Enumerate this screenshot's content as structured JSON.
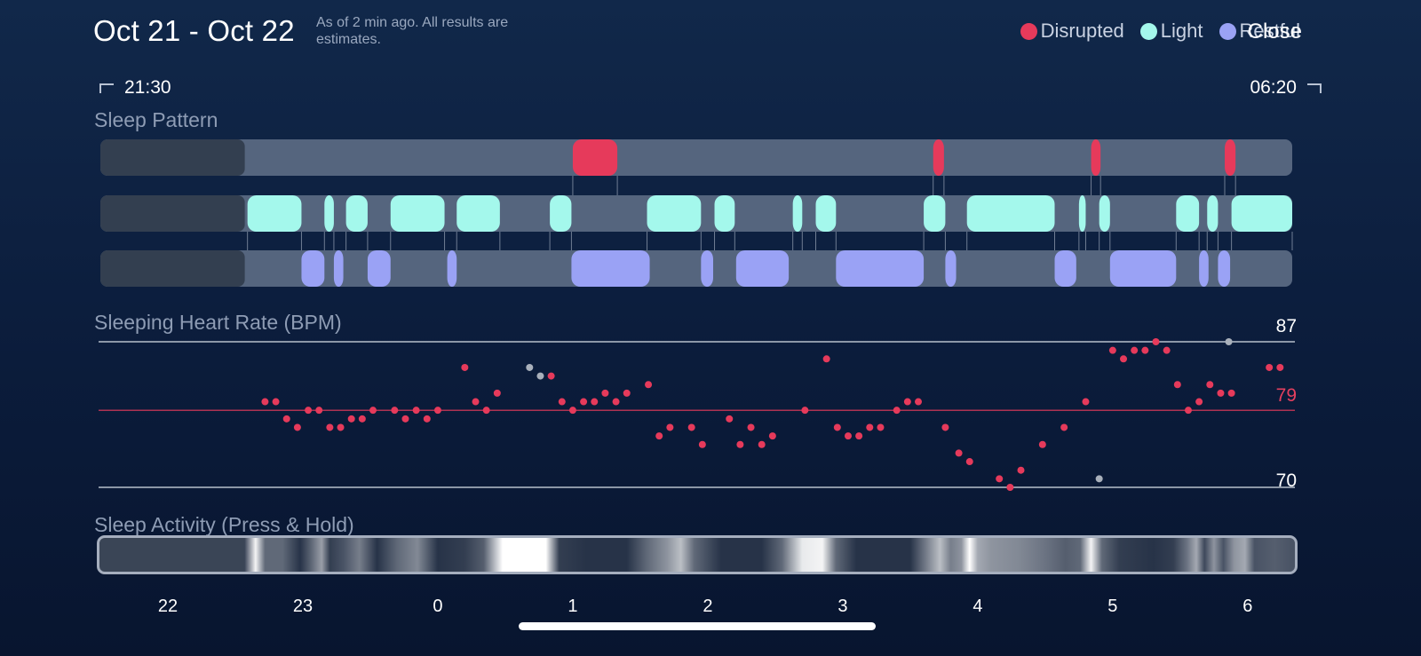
{
  "header": {
    "title": "Oct 21 - Oct 22",
    "subtitle": "As of 2 min ago. All results are estimates.",
    "close_label": "Close"
  },
  "legend": [
    {
      "label": "Disrupted",
      "color": "#e63a5b"
    },
    {
      "label": "Light",
      "color": "#a4f8ec"
    },
    {
      "label": "Restful",
      "color": "#9aa2f5"
    }
  ],
  "time_range": {
    "start": "21:30",
    "end": "06:20"
  },
  "sections": {
    "pattern": "Sleep Pattern",
    "heart_rate": "Sleeping Heart Rate (BPM)",
    "activity": "Sleep Activity (Press & Hold)"
  },
  "axis": {
    "tick_labels": [
      "22",
      "23",
      "0",
      "1",
      "2",
      "3",
      "4",
      "5",
      "6"
    ],
    "tick_hours": [
      22,
      23,
      24,
      25,
      26,
      27,
      28,
      29,
      30
    ],
    "start_hour": 21.5,
    "end_hour": 30.33
  },
  "colors": {
    "disrupted": "#e63a5b",
    "light": "#a4f8ec",
    "restful": "#9aa2f5",
    "track": "#55657e",
    "track_empty": "#333f50",
    "hr_point": "#e63a5b",
    "hr_outlier": "#a9b0bb",
    "avg_line": "#e63a5b",
    "ref_line": "#b8c0cc"
  },
  "chart_data": [
    {
      "type": "timeline",
      "title": "Sleep Pattern",
      "x_unit": "hour (21.5 = 21:30, 24 = midnight, 30.33 = 06:20)",
      "no_data_before": 22.57,
      "series": [
        {
          "name": "Disrupted",
          "segments": [
            [
              25.0,
              25.33
            ],
            [
              27.67,
              27.75
            ],
            [
              28.84,
              28.91
            ],
            [
              29.83,
              29.91
            ]
          ]
        },
        {
          "name": "Light",
          "segments": [
            [
              22.59,
              22.99
            ],
            [
              23.16,
              23.23
            ],
            [
              23.32,
              23.48
            ],
            [
              23.65,
              24.05
            ],
            [
              24.14,
              24.46
            ],
            [
              24.83,
              24.99
            ],
            [
              25.55,
              25.95
            ],
            [
              26.05,
              26.2
            ],
            [
              26.63,
              26.7
            ],
            [
              26.8,
              26.95
            ],
            [
              27.6,
              27.76
            ],
            [
              27.92,
              28.57
            ],
            [
              28.75,
              28.8
            ],
            [
              28.9,
              28.98
            ],
            [
              29.47,
              29.64
            ],
            [
              29.7,
              29.78
            ],
            [
              29.88,
              30.33
            ]
          ]
        },
        {
          "name": "Restful",
          "segments": [
            [
              22.99,
              23.16
            ],
            [
              23.23,
              23.3
            ],
            [
              23.48,
              23.65
            ],
            [
              24.07,
              24.14
            ],
            [
              24.99,
              25.57
            ],
            [
              25.95,
              26.04
            ],
            [
              26.21,
              26.6
            ],
            [
              26.95,
              27.6
            ],
            [
              27.76,
              27.84
            ],
            [
              28.57,
              28.73
            ],
            [
              28.98,
              29.47
            ],
            [
              29.64,
              29.71
            ],
            [
              29.78,
              29.87
            ]
          ]
        }
      ]
    },
    {
      "type": "scatter",
      "title": "Sleeping Heart Rate (BPM)",
      "ylim": [
        70,
        87
      ],
      "average": 79,
      "ref_labels": [
        "87",
        "79",
        "70"
      ],
      "points": [
        [
          22.72,
          80
        ],
        [
          22.8,
          80
        ],
        [
          22.88,
          78
        ],
        [
          22.96,
          77
        ],
        [
          23.04,
          79
        ],
        [
          23.12,
          79
        ],
        [
          23.2,
          77
        ],
        [
          23.28,
          77
        ],
        [
          23.36,
          78
        ],
        [
          23.44,
          78
        ],
        [
          23.52,
          79
        ],
        [
          23.68,
          79
        ],
        [
          23.76,
          78
        ],
        [
          23.84,
          79
        ],
        [
          23.92,
          78
        ],
        [
          24.0,
          79
        ],
        [
          24.2,
          84
        ],
        [
          24.28,
          80
        ],
        [
          24.36,
          79
        ],
        [
          24.44,
          81
        ],
        [
          24.84,
          83
        ],
        [
          24.92,
          80
        ],
        [
          25.0,
          79
        ],
        [
          25.08,
          80
        ],
        [
          25.16,
          80
        ],
        [
          25.24,
          81
        ],
        [
          25.32,
          80
        ],
        [
          25.4,
          81
        ],
        [
          25.56,
          82
        ],
        [
          25.64,
          76
        ],
        [
          25.72,
          77
        ],
        [
          25.88,
          77
        ],
        [
          25.96,
          75
        ],
        [
          26.16,
          78
        ],
        [
          26.24,
          75
        ],
        [
          26.32,
          77
        ],
        [
          26.4,
          75
        ],
        [
          26.48,
          76
        ],
        [
          26.72,
          79
        ],
        [
          26.88,
          85
        ],
        [
          26.96,
          77
        ],
        [
          27.04,
          76
        ],
        [
          27.12,
          76
        ],
        [
          27.2,
          77
        ],
        [
          27.28,
          77
        ],
        [
          27.4,
          79
        ],
        [
          27.48,
          80
        ],
        [
          27.56,
          80
        ],
        [
          27.76,
          77
        ],
        [
          27.86,
          74
        ],
        [
          27.94,
          73
        ],
        [
          28.16,
          71
        ],
        [
          28.24,
          70
        ],
        [
          28.32,
          72
        ],
        [
          28.48,
          75
        ],
        [
          28.64,
          77
        ],
        [
          28.8,
          80
        ],
        [
          29.0,
          86
        ],
        [
          29.08,
          85
        ],
        [
          29.16,
          86
        ],
        [
          29.24,
          86
        ],
        [
          29.32,
          87
        ],
        [
          29.4,
          86
        ],
        [
          29.48,
          82
        ],
        [
          29.56,
          79
        ],
        [
          29.64,
          80
        ],
        [
          29.72,
          82
        ],
        [
          29.8,
          81
        ],
        [
          29.88,
          81
        ],
        [
          30.16,
          84
        ],
        [
          30.24,
          84
        ]
      ],
      "outliers": [
        [
          24.68,
          84
        ],
        [
          24.76,
          83
        ],
        [
          28.9,
          71
        ],
        [
          29.86,
          87
        ]
      ]
    },
    {
      "type": "heatmap",
      "title": "Sleep Activity (Press & Hold)",
      "no_data_before": 22.57,
      "intensity_stops": [
        [
          22.57,
          0.15
        ],
        [
          22.65,
          0.95
        ],
        [
          22.72,
          0.3
        ],
        [
          22.85,
          0.3
        ],
        [
          22.98,
          0.05
        ],
        [
          23.05,
          0.25
        ],
        [
          23.14,
          0.55
        ],
        [
          23.2,
          0.1
        ],
        [
          23.3,
          0.2
        ],
        [
          23.42,
          0.4
        ],
        [
          23.55,
          0.05
        ],
        [
          23.7,
          0.3
        ],
        [
          23.85,
          0.45
        ],
        [
          24.0,
          0.05
        ],
        [
          24.2,
          0.1
        ],
        [
          24.34,
          0.25
        ],
        [
          24.48,
          1.0
        ],
        [
          24.8,
          1.0
        ],
        [
          24.9,
          0.1
        ],
        [
          25.1,
          0.05
        ],
        [
          25.4,
          0.05
        ],
        [
          25.55,
          0.3
        ],
        [
          25.7,
          0.5
        ],
        [
          25.8,
          0.7
        ],
        [
          25.9,
          0.3
        ],
        [
          26.1,
          0.05
        ],
        [
          26.4,
          0.05
        ],
        [
          26.55,
          0.3
        ],
        [
          26.7,
          0.9
        ],
        [
          26.85,
          0.95
        ],
        [
          26.95,
          0.3
        ],
        [
          27.1,
          0.05
        ],
        [
          27.5,
          0.05
        ],
        [
          27.62,
          0.4
        ],
        [
          27.72,
          0.7
        ],
        [
          27.8,
          0.4
        ],
        [
          27.88,
          0.5
        ],
        [
          27.94,
          1.0
        ],
        [
          28.0,
          0.6
        ],
        [
          28.1,
          0.5
        ],
        [
          28.3,
          0.45
        ],
        [
          28.5,
          0.35
        ],
        [
          28.65,
          0.25
        ],
        [
          28.76,
          0.3
        ],
        [
          28.84,
          0.95
        ],
        [
          28.92,
          0.3
        ],
        [
          29.05,
          0.1
        ],
        [
          29.3,
          0.05
        ],
        [
          29.45,
          0.1
        ],
        [
          29.55,
          0.35
        ],
        [
          29.62,
          0.6
        ],
        [
          29.68,
          0.15
        ],
        [
          29.75,
          0.5
        ],
        [
          29.82,
          0.2
        ],
        [
          29.9,
          0.5
        ],
        [
          29.98,
          0.6
        ],
        [
          30.05,
          0.2
        ],
        [
          30.2,
          0.25
        ],
        [
          30.33,
          0.2
        ]
      ]
    }
  ]
}
